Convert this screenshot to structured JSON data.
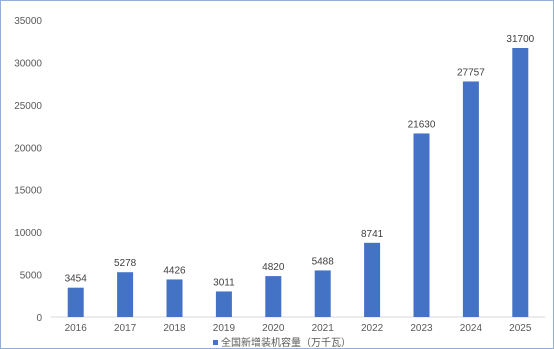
{
  "chart_data": {
    "type": "bar",
    "categories": [
      "2016",
      "2017",
      "2018",
      "2019",
      "2020",
      "2021",
      "2022",
      "2023",
      "2024",
      "2025"
    ],
    "series": [
      {
        "name": "全国新增装机容量（万千瓦）",
        "values": [
          3454,
          5278,
          4426,
          3011,
          4820,
          5488,
          8741,
          21630,
          27757,
          31700
        ]
      }
    ],
    "y_ticks": [
      0,
      5000,
      10000,
      15000,
      20000,
      25000,
      30000,
      35000
    ],
    "ylim": [
      0,
      35000
    ],
    "grid": false,
    "legend_position": "bottom",
    "bar_color": "#4472c4",
    "axis_color": "#d9d9d9"
  }
}
